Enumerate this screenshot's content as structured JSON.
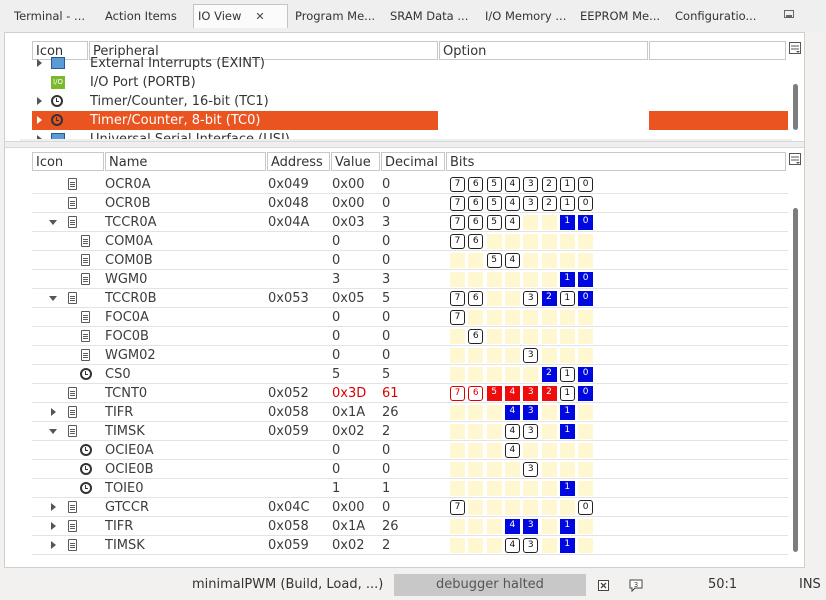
{
  "tabs": [
    {
      "label": "Terminal - ...",
      "active": false
    },
    {
      "label": "Action Items",
      "active": false
    },
    {
      "label": "IO View",
      "active": true
    },
    {
      "label": "Program Me...",
      "active": false
    },
    {
      "label": "SRAM Data ...",
      "active": false
    },
    {
      "label": "I/O Memory ...",
      "active": false
    },
    {
      "label": "EEPROM Me...",
      "active": false
    },
    {
      "label": "Configuratio...",
      "active": false
    }
  ],
  "tab_close_glyph": "✕",
  "top_table": {
    "headers": {
      "icon": "Icon",
      "peripheral": "Peripheral",
      "option": "Option"
    },
    "rows": [
      {
        "label": "External Interrupts (EXINT)",
        "icon": "interrupt-icon",
        "expand": "right",
        "selected": false
      },
      {
        "label": "I/O Port (PORTB)",
        "icon": "io-port-icon",
        "expand": "none",
        "selected": false
      },
      {
        "label": "Timer/Counter, 16-bit (TC1)",
        "icon": "clock-icon",
        "expand": "right",
        "selected": false
      },
      {
        "label": "Timer/Counter, 8-bit (TC0)",
        "icon": "clock-icon",
        "expand": "right",
        "selected": true
      },
      {
        "label": "Universal Serial Interface (USI)",
        "icon": "usi-icon",
        "expand": "right",
        "selected": false
      }
    ],
    "io_icon_text": "I/O"
  },
  "bottom_table": {
    "headers": {
      "icon": "Icon",
      "name": "Name",
      "address": "Address",
      "value": "Value",
      "decimal": "Decimal",
      "bits": "Bits"
    },
    "rows": [
      {
        "name": "OCR0A",
        "address": "0x049",
        "value": "0x00",
        "decimal": "0",
        "level": 0,
        "icon": "register",
        "expand": "none",
        "changed": false,
        "bits": [
          "b0:7",
          "b0:6",
          "b0:5",
          "b0:4",
          "b0:3",
          "b0:2",
          "b0:1",
          "b0:0"
        ]
      },
      {
        "name": "OCR0B",
        "address": "0x048",
        "value": "0x00",
        "decimal": "0",
        "level": 0,
        "icon": "register",
        "expand": "none",
        "changed": false,
        "bits": [
          "b0:7",
          "b0:6",
          "b0:5",
          "b0:4",
          "b0:3",
          "b0:2",
          "b0:1",
          "b0:0"
        ]
      },
      {
        "name": "TCCR0A",
        "address": "0x04A",
        "value": "0x03",
        "decimal": "3",
        "level": 0,
        "icon": "register",
        "expand": "down",
        "changed": false,
        "bits": [
          "b0:7",
          "b0:6",
          "b0:5",
          "b0:4",
          "e",
          "e",
          "b1:1",
          "b1:0"
        ]
      },
      {
        "name": "COM0A",
        "address": "",
        "value": "0",
        "decimal": "0",
        "level": 1,
        "icon": "register",
        "expand": "none",
        "changed": false,
        "bits": [
          "b0:7",
          "b0:6",
          "e",
          "e",
          "e",
          "e",
          "e",
          "e"
        ]
      },
      {
        "name": "COM0B",
        "address": "",
        "value": "0",
        "decimal": "0",
        "level": 1,
        "icon": "register",
        "expand": "none",
        "changed": false,
        "bits": [
          "e",
          "e",
          "b0:5",
          "b0:4",
          "e",
          "e",
          "e",
          "e"
        ]
      },
      {
        "name": "WGM0",
        "address": "",
        "value": "3",
        "decimal": "3",
        "level": 1,
        "icon": "register",
        "expand": "none",
        "changed": false,
        "bits": [
          "e",
          "e",
          "e",
          "e",
          "e",
          "e",
          "b1:1",
          "b1:0"
        ]
      },
      {
        "name": "TCCR0B",
        "address": "0x053",
        "value": "0x05",
        "decimal": "5",
        "level": 0,
        "icon": "register",
        "expand": "down",
        "changed": false,
        "bits": [
          "b0:7",
          "b0:6",
          "e",
          "e",
          "b0:3",
          "b1:2",
          "b0:1",
          "b1:0"
        ]
      },
      {
        "name": "FOC0A",
        "address": "",
        "value": "0",
        "decimal": "0",
        "level": 1,
        "icon": "register",
        "expand": "none",
        "changed": false,
        "bits": [
          "b0:7",
          "e",
          "e",
          "e",
          "e",
          "e",
          "e",
          "e"
        ]
      },
      {
        "name": "FOC0B",
        "address": "",
        "value": "0",
        "decimal": "0",
        "level": 1,
        "icon": "register",
        "expand": "none",
        "changed": false,
        "bits": [
          "e",
          "b0:6",
          "e",
          "e",
          "e",
          "e",
          "e",
          "e"
        ]
      },
      {
        "name": "WGM02",
        "address": "",
        "value": "0",
        "decimal": "0",
        "level": 1,
        "icon": "register",
        "expand": "none",
        "changed": false,
        "bits": [
          "e",
          "e",
          "e",
          "e",
          "b0:3",
          "e",
          "e",
          "e"
        ]
      },
      {
        "name": "CS0",
        "address": "",
        "value": "5",
        "decimal": "5",
        "level": 1,
        "icon": "clock",
        "expand": "none",
        "changed": false,
        "bits": [
          "e",
          "e",
          "e",
          "e",
          "e",
          "b1:2",
          "b0:1",
          "b1:0"
        ]
      },
      {
        "name": "TCNT0",
        "address": "0x052",
        "value": "0x3D",
        "decimal": "61",
        "level": 0,
        "icon": "register",
        "expand": "none",
        "changed": true,
        "bits": [
          "c0:7",
          "c0:6",
          "c1:5",
          "c1:4",
          "c1:3",
          "c1:2",
          "b0:1",
          "b1:0"
        ]
      },
      {
        "name": "TIFR",
        "address": "0x058",
        "value": "0x1A",
        "decimal": "26",
        "level": 0,
        "icon": "register",
        "expand": "right",
        "changed": false,
        "bits": [
          "e",
          "e",
          "e",
          "b1:4",
          "b1:3",
          "e",
          "b1:1",
          "e"
        ]
      },
      {
        "name": "TIMSK",
        "address": "0x059",
        "value": "0x02",
        "decimal": "2",
        "level": 0,
        "icon": "register",
        "expand": "down",
        "changed": false,
        "bits": [
          "e",
          "e",
          "e",
          "b0:4",
          "b0:3",
          "e",
          "b1:1",
          "e"
        ]
      },
      {
        "name": "OCIE0A",
        "address": "",
        "value": "0",
        "decimal": "0",
        "level": 1,
        "icon": "clock",
        "expand": "none",
        "changed": false,
        "bits": [
          "e",
          "e",
          "e",
          "b0:4",
          "e",
          "e",
          "e",
          "e"
        ]
      },
      {
        "name": "OCIE0B",
        "address": "",
        "value": "0",
        "decimal": "0",
        "level": 1,
        "icon": "clock",
        "expand": "none",
        "changed": false,
        "bits": [
          "e",
          "e",
          "e",
          "e",
          "b0:3",
          "e",
          "e",
          "e"
        ]
      },
      {
        "name": "TOIE0",
        "address": "",
        "value": "1",
        "decimal": "1",
        "level": 1,
        "icon": "clock",
        "expand": "none",
        "changed": false,
        "bits": [
          "e",
          "e",
          "e",
          "e",
          "e",
          "e",
          "b1:1",
          "e"
        ]
      },
      {
        "name": "GTCCR",
        "address": "0x04C",
        "value": "0x00",
        "decimal": "0",
        "level": 0,
        "icon": "register",
        "expand": "right",
        "changed": false,
        "bits": [
          "b0:7",
          "e",
          "e",
          "e",
          "e",
          "e",
          "e",
          "b0:0"
        ]
      },
      {
        "name": "TIFR",
        "address": "0x058",
        "value": "0x1A",
        "decimal": "26",
        "level": 0,
        "icon": "register",
        "expand": "right",
        "changed": false,
        "bits": [
          "e",
          "e",
          "e",
          "b1:4",
          "b1:3",
          "e",
          "b1:1",
          "e"
        ]
      },
      {
        "name": "TIMSK",
        "address": "0x059",
        "value": "0x02",
        "decimal": "2",
        "level": 0,
        "icon": "register",
        "expand": "right",
        "changed": false,
        "bits": [
          "e",
          "e",
          "e",
          "b0:4",
          "b0:3",
          "e",
          "b1:1",
          "e"
        ]
      }
    ]
  },
  "status_bar": {
    "build": "minimalPWM (Build, Load, ...)",
    "halted": "debugger halted",
    "position": "50:1",
    "mode": "INS"
  },
  "colors": {
    "selection": "#e95420",
    "bit_set": "#0008e0",
    "bit_changed": "#ee0c0c",
    "bit_empty": "#fff7cf"
  }
}
